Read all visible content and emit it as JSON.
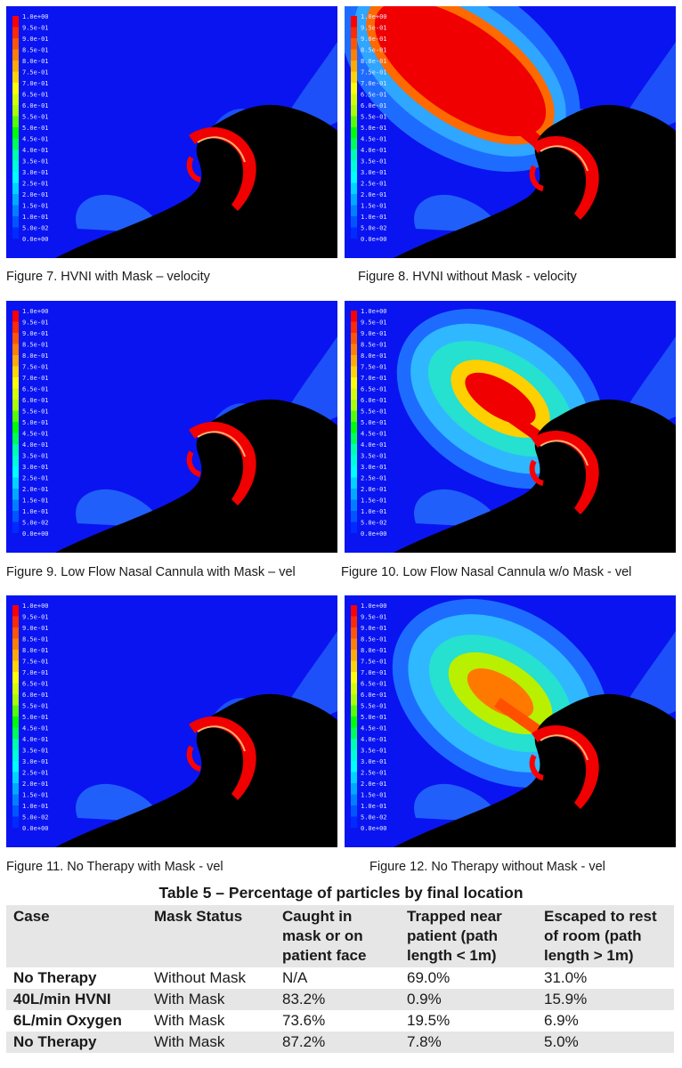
{
  "figures": [
    {
      "caption": "Figure 7. HVNI with Mask – velocity",
      "variant": "mask",
      "plume": "none"
    },
    {
      "caption": "Figure 8. HVNI without Mask - velocity",
      "variant": "nomask",
      "plume": "strong"
    },
    {
      "caption": "Figure 9. Low Flow Nasal Cannula with Mask – vel",
      "variant": "mask",
      "plume": "none"
    },
    {
      "caption": "Figure 10. Low Flow Nasal Cannula w/o Mask - vel",
      "variant": "nomask",
      "plume": "medium"
    },
    {
      "caption": "Figure 11. No Therapy with Mask - vel",
      "variant": "mask",
      "plume": "none"
    },
    {
      "caption": "Figure 12. No Therapy without Mask - vel",
      "variant": "nomask",
      "plume": "weak"
    }
  ],
  "legend_labels": [
    "1.0e+00",
    "9.5e-01",
    "9.0e-01",
    "8.5e-01",
    "8.0e-01",
    "7.5e-01",
    "7.0e-01",
    "6.5e-01",
    "6.0e-01",
    "5.5e-01",
    "5.0e-01",
    "4.5e-01",
    "4.0e-01",
    "3.5e-01",
    "3.0e-01",
    "2.5e-01",
    "2.0e-01",
    "1.5e-01",
    "1.0e-01",
    "5.0e-02",
    "0.0e+00"
  ],
  "legend_colors": [
    "#ff0000",
    "#ff2a00",
    "#ff5500",
    "#ff7f00",
    "#ffaa00",
    "#ffd400",
    "#ffff00",
    "#d4ff00",
    "#aaff00",
    "#55ff00",
    "#00ff00",
    "#00ff55",
    "#00ffaa",
    "#00ffd4",
    "#00ffff",
    "#00d4ff",
    "#00aaff",
    "#0080ff",
    "#0055ff",
    "#002aff"
  ],
  "table": {
    "title": "Table 5 – Percentage of particles by final location",
    "headers": [
      "Case",
      "Mask Status",
      "Caught in mask or on patient face",
      "Trapped near patient (path length < 1m)",
      "Escaped to rest of room (path length > 1m)"
    ],
    "rows": [
      [
        "No Therapy",
        "Without Mask",
        "N/A",
        "69.0%",
        "31.0%"
      ],
      [
        "40L/min HVNI",
        "With Mask",
        "83.2%",
        "0.9%",
        "15.9%"
      ],
      [
        "6L/min Oxygen",
        "With Mask",
        "73.6%",
        "19.5%",
        "6.9%"
      ],
      [
        "No Therapy",
        "With Mask",
        "87.2%",
        "7.8%",
        "5.0%"
      ]
    ]
  }
}
